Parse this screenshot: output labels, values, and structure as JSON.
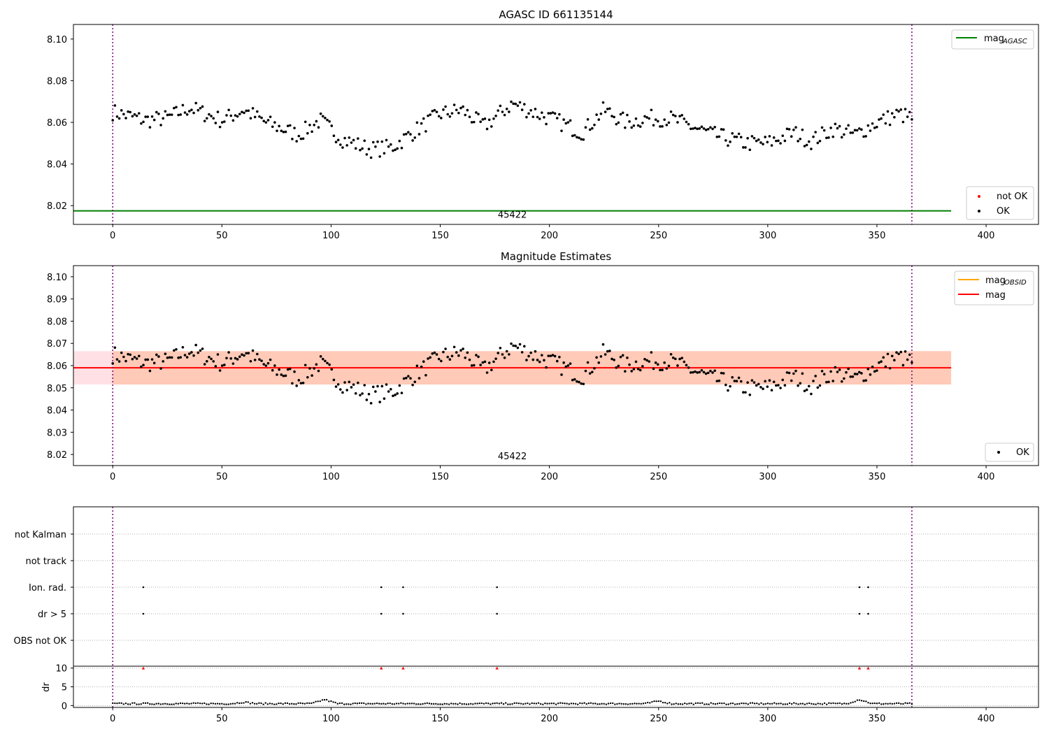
{
  "chart_data": [
    {
      "type": "scatter",
      "title": "AGASC ID 661135144",
      "xlabel": "",
      "ylabel": "",
      "xlim": [
        -18,
        424
      ],
      "ylim": [
        8.011,
        8.107
      ],
      "xticks": [
        "0",
        "50",
        "100",
        "150",
        "200",
        "250",
        "300",
        "350",
        "400"
      ],
      "yticks": [
        "8.02",
        "8.04",
        "8.06",
        "8.08",
        "8.10"
      ],
      "annotation": "45422",
      "annotation_x": 183,
      "obs_boundaries": [
        0,
        366
      ],
      "hline": {
        "name": "mag",
        "subscript": "AGASC",
        "value": 8.0175,
        "x_range": [
          -18,
          384
        ],
        "color": "#008000"
      },
      "legend_upper": [
        {
          "label": "mag",
          "subscript": "AGASC",
          "marker": "line",
          "color": "#008000"
        }
      ],
      "legend_lower": [
        {
          "label": "not OK",
          "marker": "dot",
          "color": "#ff0000"
        },
        {
          "label": "OK",
          "marker": "dot",
          "color": "#000000"
        }
      ],
      "series": [
        {
          "name": "OK",
          "color": "#000000",
          "x_start": 0,
          "x_end": 366,
          "n_points": 366,
          "knots": [
            [
              0,
              8.065
            ],
            [
              15,
              8.061
            ],
            [
              25,
              8.062
            ],
            [
              35,
              8.067
            ],
            [
              50,
              8.061
            ],
            [
              60,
              8.066
            ],
            [
              70,
              8.06
            ],
            [
              85,
              8.054
            ],
            [
              95,
              8.061
            ],
            [
              105,
              8.052
            ],
            [
              118,
              8.047
            ],
            [
              128,
              8.048
            ],
            [
              140,
              8.057
            ],
            [
              150,
              8.064
            ],
            [
              160,
              8.066
            ],
            [
              170,
              8.058
            ],
            [
              183,
              8.069
            ],
            [
              195,
              8.064
            ],
            [
              205,
              8.06
            ],
            [
              215,
              8.055
            ],
            [
              225,
              8.066
            ],
            [
              235,
              8.06
            ],
            [
              245,
              8.062
            ],
            [
              255,
              8.062
            ],
            [
              265,
              8.058
            ],
            [
              275,
              8.054
            ],
            [
              290,
              8.05
            ],
            [
              300,
              8.05
            ],
            [
              312,
              8.055
            ],
            [
              320,
              8.051
            ],
            [
              330,
              8.057
            ],
            [
              340,
              8.054
            ],
            [
              350,
              8.06
            ],
            [
              360,
              8.064
            ],
            [
              366,
              8.062
            ]
          ],
          "amplitude": 0.004
        }
      ]
    },
    {
      "type": "scatter",
      "title": "Magnitude Estimates",
      "xlabel": "",
      "ylabel": "",
      "xlim": [
        -18,
        424
      ],
      "ylim": [
        8.015,
        8.105
      ],
      "xticks": [
        "0",
        "50",
        "100",
        "150",
        "200",
        "250",
        "300",
        "350",
        "400"
      ],
      "yticks": [
        "8.02",
        "8.03",
        "8.04",
        "8.05",
        "8.06",
        "8.07",
        "8.08",
        "8.09",
        "8.10"
      ],
      "annotation": "45422",
      "annotation_x": 183,
      "obs_boundaries": [
        0,
        366
      ],
      "mag": 8.059,
      "mag_band": [
        8.0515,
        8.0665
      ],
      "mag_x_range": [
        -18,
        384
      ],
      "obsid_band_x_range": [
        0,
        384
      ],
      "legend_upper": [
        {
          "label": "mag",
          "subscript": "OBSID",
          "marker": "line",
          "color": "#ffa500"
        },
        {
          "label": "mag",
          "subscript": "",
          "marker": "line",
          "color": "#ff0000"
        }
      ],
      "legend_lower": [
        {
          "label": "OK",
          "marker": "dot",
          "color": "#000000"
        }
      ],
      "series": [
        {
          "name": "OK",
          "same_as_panel": 0
        }
      ]
    },
    {
      "type": "scatter",
      "title": "",
      "xlim": [
        -18,
        424
      ],
      "xticks": [
        "0",
        "50",
        "100",
        "150",
        "200",
        "250",
        "300",
        "350",
        "400"
      ],
      "flag_rows": [
        "not Kalman",
        "not track",
        "Ion. rad.",
        "dr > 5",
        "OBS not OK"
      ],
      "flags": {
        "Ion. rad.": [
          14,
          123,
          133,
          176,
          342,
          346
        ],
        "dr > 5": [
          14,
          123,
          133,
          176,
          342,
          346
        ]
      },
      "obs_boundaries": [
        0,
        366
      ]
    },
    {
      "type": "scatter",
      "title": "",
      "ylabel": "dr",
      "xlim": [
        -18,
        424
      ],
      "ylim": [
        -0.5,
        10.5
      ],
      "yticks": [
        "0",
        "5",
        "10"
      ],
      "xticks": [
        "0",
        "50",
        "100",
        "150",
        "200",
        "250",
        "300",
        "350",
        "400"
      ],
      "capped_points": {
        "x": [
          14,
          123,
          133,
          176,
          342,
          346
        ],
        "value": 10,
        "color": "#ff0000"
      },
      "series": [
        {
          "name": "dr",
          "color": "#000000",
          "x_start": 0,
          "x_end": 366,
          "typical": 0.5,
          "bumps": [
            [
              60,
              0.9
            ],
            [
              97,
              1.6
            ],
            [
              250,
              1.2
            ],
            [
              342,
              1.6
            ]
          ]
        }
      ]
    }
  ]
}
